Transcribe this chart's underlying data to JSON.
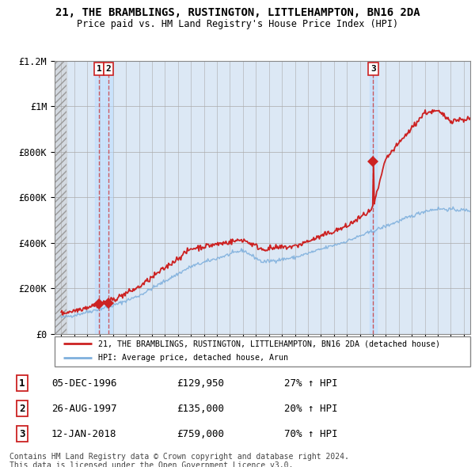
{
  "title_line1": "21, THE BRAMBLINGS, RUSTINGTON, LITTLEHAMPTON, BN16 2DA",
  "title_line2": "Price paid vs. HM Land Registry's House Price Index (HPI)",
  "legend_label_red": "21, THE BRAMBLINGS, RUSTINGTON, LITTLEHAMPTON, BN16 2DA (detached house)",
  "legend_label_blue": "HPI: Average price, detached house, Arun",
  "transactions": [
    {
      "label": "1",
      "date": "05-DEC-1996",
      "price": 129950,
      "year": 1996.92,
      "hpi_pct": "27% ↑ HPI"
    },
    {
      "label": "2",
      "date": "26-AUG-1997",
      "price": 135000,
      "year": 1997.65,
      "hpi_pct": "20% ↑ HPI"
    },
    {
      "label": "3",
      "date": "12-JAN-2018",
      "price": 759000,
      "year": 2018.03,
      "hpi_pct": "70% ↑ HPI"
    }
  ],
  "footnote_line1": "Contains HM Land Registry data © Crown copyright and database right 2024.",
  "footnote_line2": "This data is licensed under the Open Government Licence v3.0.",
  "plot_bg": "#dce8f5",
  "red_color": "#cc2222",
  "blue_color": "#7fb0dd",
  "ylim_max": 1200000,
  "xmin": 1993.5,
  "xmax": 2025.5
}
